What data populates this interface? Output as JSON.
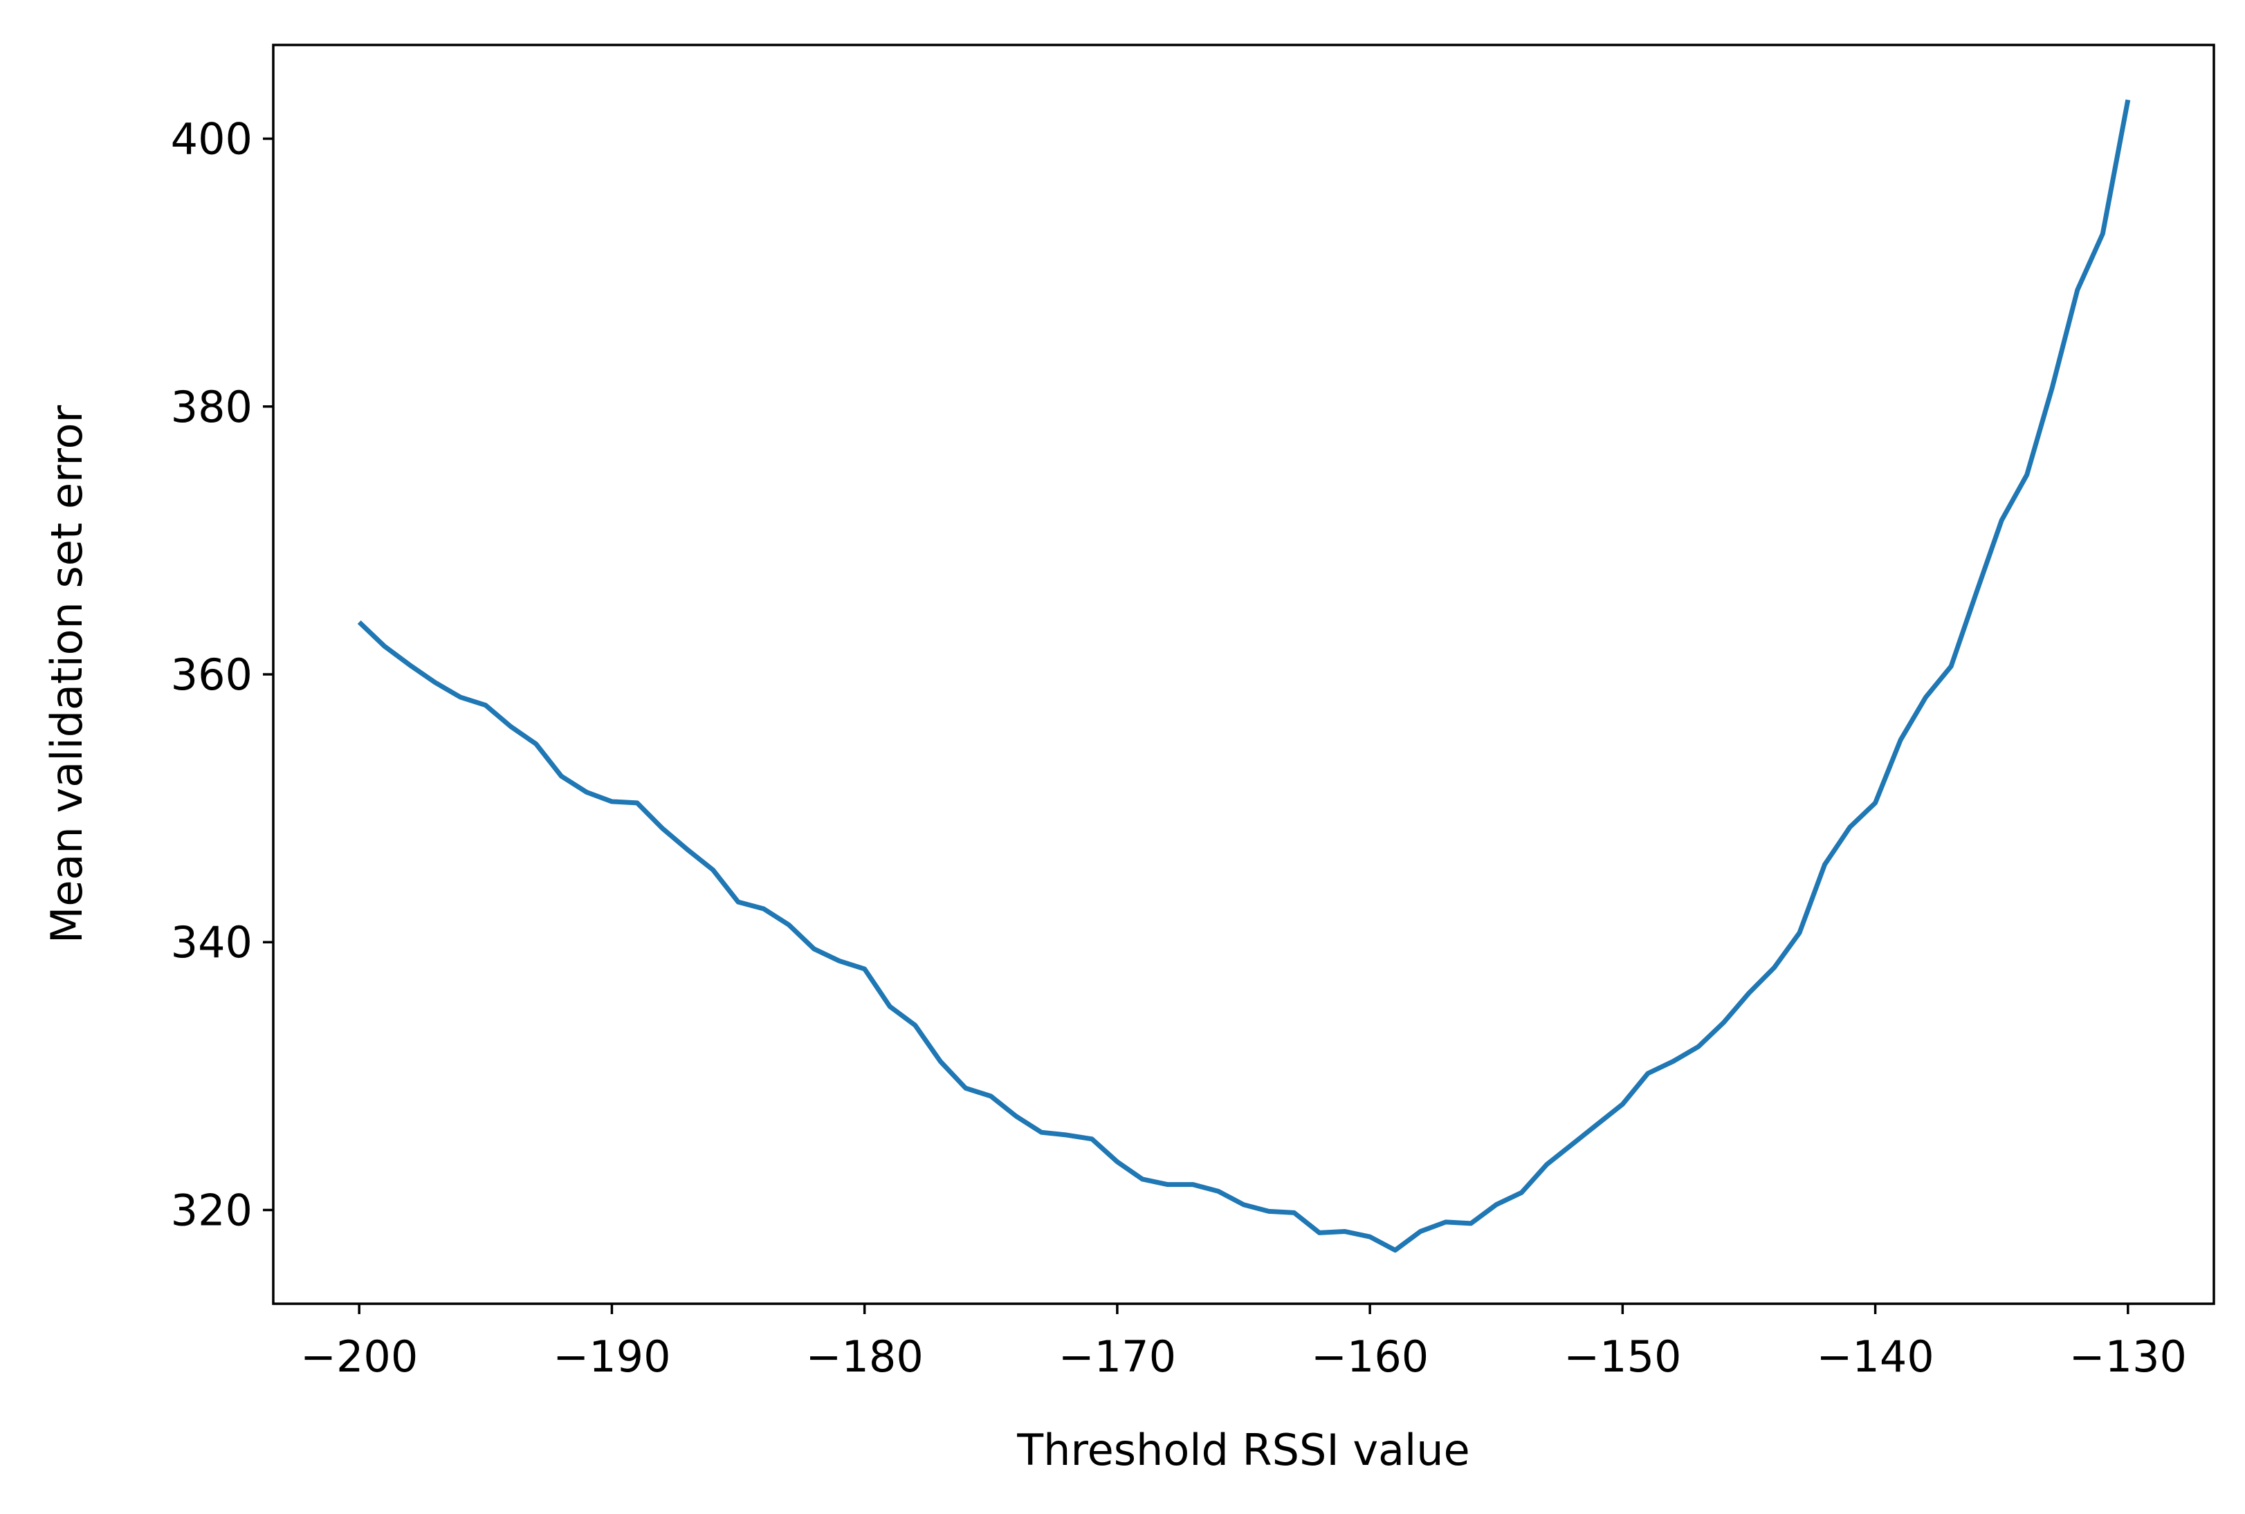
{
  "chart_data": {
    "type": "line",
    "title": "",
    "xlabel": "Threshold RSSI value",
    "ylabel": "Mean validation set error",
    "xlim": [
      -203.4,
      -126.6
    ],
    "ylim": [
      313,
      407
    ],
    "xticks": [
      -200,
      -190,
      -180,
      -170,
      -160,
      -150,
      -140,
      -130
    ],
    "xtick_labels": [
      "−200",
      "−190",
      "−180",
      "−170",
      "−160",
      "−150",
      "−140",
      "−130"
    ],
    "yticks": [
      320,
      340,
      360,
      380,
      400
    ],
    "ytick_labels": [
      "320",
      "340",
      "360",
      "380",
      "400"
    ],
    "grid": false,
    "legend": "none",
    "series": [
      {
        "color": "#1f77b4",
        "x": [
          -200,
          -199,
          -198,
          -197,
          -196,
          -195,
          -194,
          -193,
          -192,
          -191,
          -190,
          -189,
          -188,
          -187,
          -186,
          -185,
          -184,
          -183,
          -182,
          -181,
          -180,
          -179,
          -178,
          -177,
          -176,
          -175,
          -174,
          -173,
          -172,
          -171,
          -170,
          -169,
          -168,
          -167,
          -166,
          -165,
          -164,
          -163,
          -162,
          -161,
          -160,
          -159,
          -158,
          -157,
          -156,
          -155,
          -154,
          -153,
          -152,
          -151,
          -150,
          -149,
          -148,
          -147,
          -146,
          -145,
          -144,
          -143,
          -142,
          -141,
          -140,
          -139,
          -138,
          -137,
          -136,
          -135,
          -134,
          -133,
          -132,
          -131,
          -130
        ],
        "y": [
          363.9,
          362.1,
          360.7,
          359.4,
          358.3,
          357.7,
          356.1,
          354.8,
          352.4,
          351.2,
          350.5,
          350.4,
          348.5,
          346.9,
          345.4,
          343.0,
          342.5,
          341.3,
          339.5,
          338.6,
          338.0,
          335.2,
          333.8,
          331.1,
          329.1,
          328.5,
          327.0,
          325.8,
          325.6,
          325.3,
          323.6,
          322.3,
          321.9,
          321.9,
          321.4,
          320.4,
          319.9,
          319.8,
          318.3,
          318.4,
          318.0,
          317.0,
          318.4,
          319.1,
          319.0,
          320.4,
          321.3,
          323.4,
          324.9,
          326.4,
          327.9,
          330.2,
          331.1,
          332.2,
          334.0,
          336.2,
          338.1,
          340.7,
          345.8,
          348.6,
          350.4,
          355.1,
          358.3,
          360.6,
          366.1,
          371.5,
          374.9,
          381.4,
          388.7,
          392.9,
          402.9
        ]
      }
    ]
  }
}
